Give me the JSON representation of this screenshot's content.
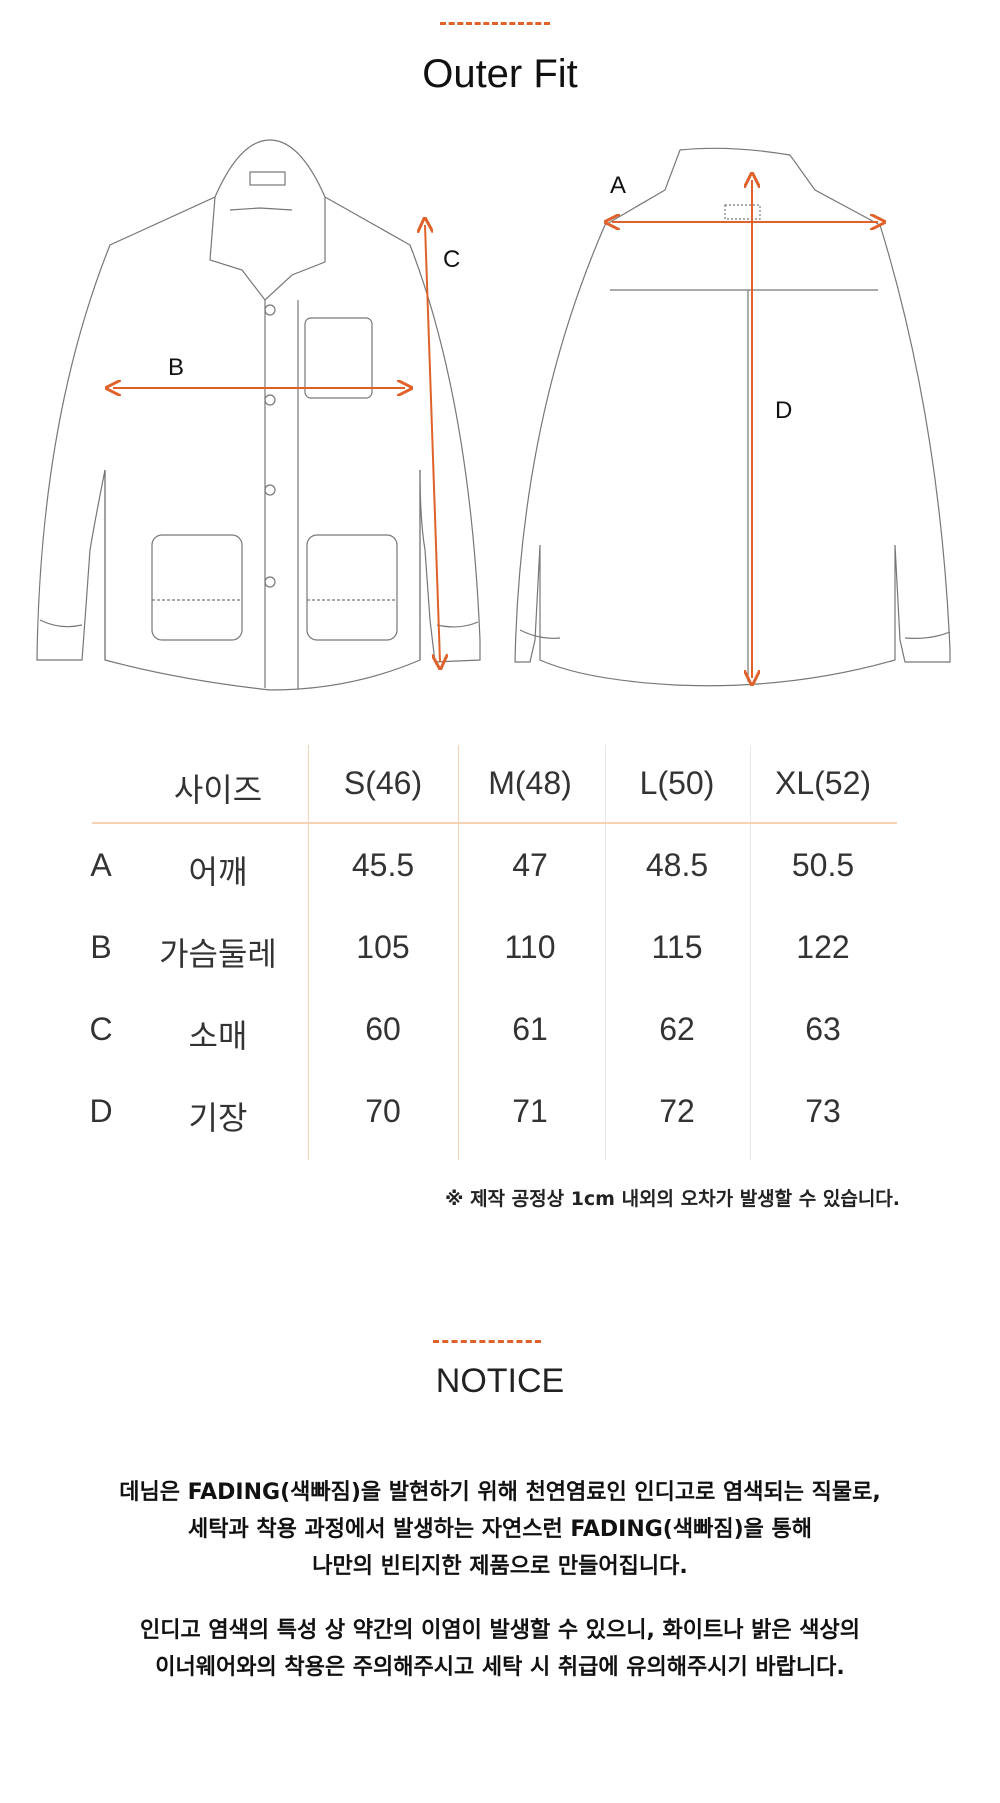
{
  "colors": {
    "accent": "#e0622a",
    "table_line": "#f6d3b4"
  },
  "fit": {
    "title": "Outer Fit",
    "labels": {
      "a": "A",
      "b": "B",
      "c": "C",
      "d": "D"
    }
  },
  "size_table": {
    "header": {
      "label": "사이즈",
      "sizes": [
        "S(46)",
        "M(48)",
        "L(50)",
        "XL(52)"
      ]
    },
    "rows": [
      {
        "code": "A",
        "name": "어깨",
        "values": [
          "45.5",
          "47",
          "48.5",
          "50.5"
        ]
      },
      {
        "code": "B",
        "name": "가슴둘레",
        "values": [
          "105",
          "110",
          "115",
          "122"
        ]
      },
      {
        "code": "C",
        "name": "소매",
        "values": [
          "60",
          "61",
          "62",
          "63"
        ]
      },
      {
        "code": "D",
        "name": "기장",
        "values": [
          "70",
          "71",
          "72",
          "73"
        ]
      }
    ],
    "note": "※ 제작 공정상 1cm 내외의 오차가 발생할 수 있습니다."
  },
  "notice": {
    "title": "NOTICE",
    "paragraphs": [
      [
        "데님은 FADING(색빠짐)을 발현하기 위해 천연염료인 인디고로 염색되는 직물로,",
        "세탁과 착용 과정에서 발생하는 자연스런 FADING(색빠짐)을 통해",
        "나만의 빈티지한 제품으로 만들어집니다."
      ],
      [
        "인디고 염색의 특성 상 약간의 이염이 발생할 수 있으니, 화이트나 밝은 색상의",
        "이너웨어와의 착용은 주의해주시고 세탁 시 취급에 유의해주시기 바랍니다."
      ]
    ]
  }
}
